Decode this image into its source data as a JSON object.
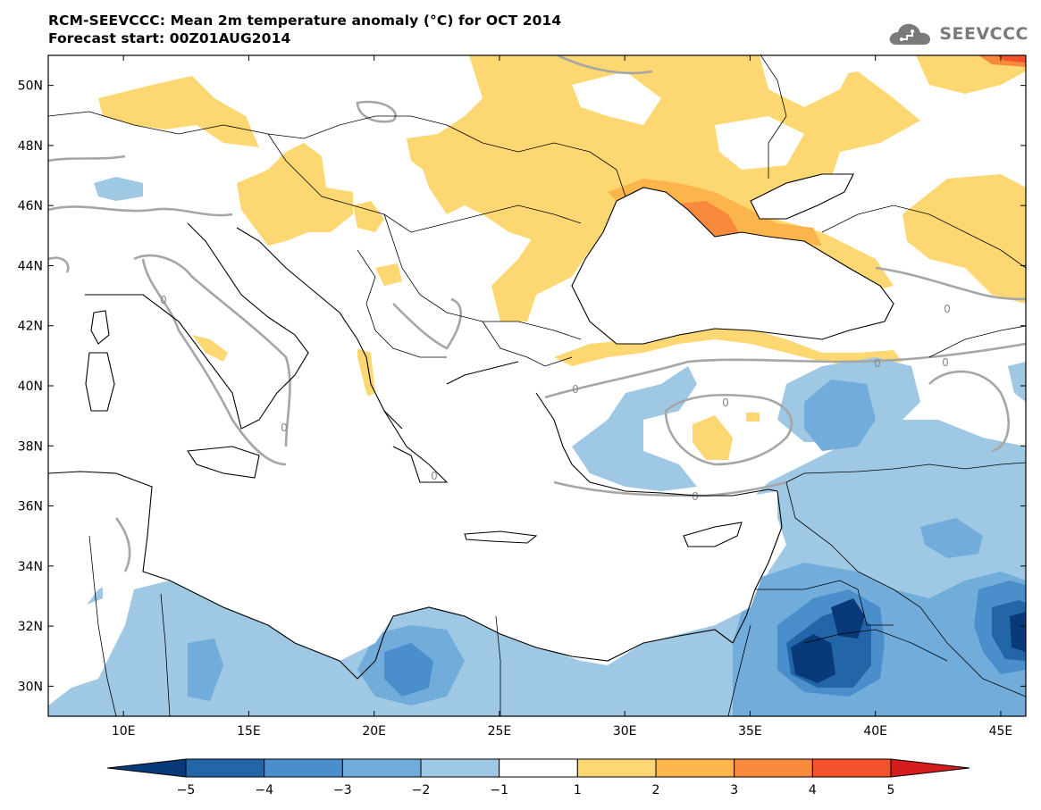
{
  "title": {
    "line1": "RCM-SEEVCCC: Mean 2m temperature anomaly (°C) for OCT 2014",
    "line2": "Forecast start: 00Z01AUG2014"
  },
  "logo": {
    "text": "SEEVCCC",
    "icon": "cloud-icon"
  },
  "map": {
    "lon_range": [
      7,
      46
    ],
    "lat_range": [
      29,
      51
    ],
    "lon_ticks": [
      {
        "value": 10,
        "label": "10E"
      },
      {
        "value": 15,
        "label": "15E"
      },
      {
        "value": 20,
        "label": "20E"
      },
      {
        "value": 25,
        "label": "25E"
      },
      {
        "value": 30,
        "label": "30E"
      },
      {
        "value": 35,
        "label": "35E"
      },
      {
        "value": 40,
        "label": "40E"
      },
      {
        "value": 45,
        "label": "45E"
      }
    ],
    "lat_ticks": [
      {
        "value": 30,
        "label": "30N"
      },
      {
        "value": 32,
        "label": "32N"
      },
      {
        "value": 34,
        "label": "34N"
      },
      {
        "value": 36,
        "label": "36N"
      },
      {
        "value": 38,
        "label": "38N"
      },
      {
        "value": 40,
        "label": "40N"
      },
      {
        "value": 42,
        "label": "42N"
      },
      {
        "value": 44,
        "label": "44N"
      },
      {
        "value": 46,
        "label": "46N"
      },
      {
        "value": 48,
        "label": "48N"
      },
      {
        "value": 50,
        "label": "50N"
      }
    ],
    "contour_label": "0"
  },
  "colorbar": {
    "boundaries": [
      "-5",
      "-4",
      "-3",
      "-2",
      "-1",
      "1",
      "2",
      "3",
      "4",
      "5"
    ],
    "colors": [
      "#083a79",
      "#2266a8",
      "#4a8fcb",
      "#72acda",
      "#9ec8e4",
      "#ffffff",
      "#fdd872",
      "#fcb54a",
      "#f98a3c",
      "#f2512c",
      "#d61d1d"
    ]
  }
}
